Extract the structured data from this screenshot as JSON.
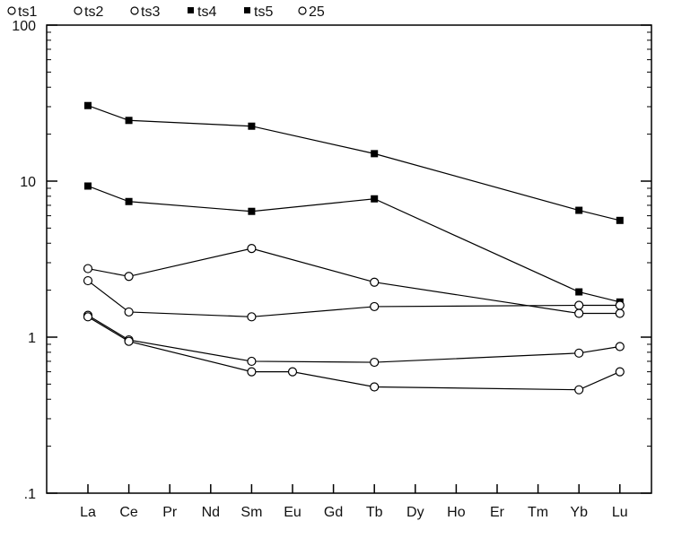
{
  "chart_data": {
    "type": "line",
    "title": "",
    "xlabel": "",
    "ylabel": "",
    "yscale": "log",
    "ylim": [
      0.1,
      100
    ],
    "grid": false,
    "legend_position": "top-left",
    "categories": [
      "La",
      "Ce",
      "Pr",
      "Nd",
      "Sm",
      "Eu",
      "Gd",
      "Tb",
      "Dy",
      "Ho",
      "Er",
      "Tm",
      "Yb",
      "Lu"
    ],
    "y_ticks": [
      {
        "value": 0.1,
        "label": ".1"
      },
      {
        "value": 1,
        "label": "1"
      },
      {
        "value": 10,
        "label": "10"
      },
      {
        "value": 100,
        "label": "100"
      }
    ],
    "series": [
      {
        "name": "ts1",
        "marker": "open-circle",
        "points": [
          [
            "La",
            1.38
          ],
          [
            "Ce",
            0.96
          ],
          [
            "Sm",
            0.7
          ],
          [
            "Tb",
            0.69
          ],
          [
            "Yb",
            0.79
          ],
          [
            "Lu",
            0.87
          ]
        ]
      },
      {
        "name": "ts2",
        "marker": "open-circle",
        "points": [
          [
            "La",
            1.35
          ],
          [
            "Ce",
            0.94
          ],
          [
            "Sm",
            0.6
          ],
          [
            "Eu",
            0.6
          ],
          [
            "Tb",
            0.48
          ],
          [
            "Yb",
            0.46
          ],
          [
            "Lu",
            0.6
          ]
        ]
      },
      {
        "name": "ts3",
        "marker": "open-circle",
        "points": [
          [
            "La",
            2.75
          ],
          [
            "Ce",
            2.45
          ],
          [
            "Sm",
            3.7
          ],
          [
            "Tb",
            2.25
          ],
          [
            "Yb",
            1.42
          ],
          [
            "Lu",
            1.42
          ]
        ]
      },
      {
        "name": "ts4",
        "marker": "filled-square",
        "points": [
          [
            "La",
            30.5
          ],
          [
            "Ce",
            24.5
          ],
          [
            "Sm",
            22.5
          ],
          [
            "Tb",
            15.0
          ],
          [
            "Yb",
            6.5
          ],
          [
            "Lu",
            5.6
          ]
        ]
      },
      {
        "name": "ts5",
        "marker": "filled-square",
        "points": [
          [
            "La",
            9.3
          ],
          [
            "Ce",
            7.4
          ],
          [
            "Sm",
            6.4
          ],
          [
            "Tb",
            7.7
          ],
          [
            "Yb",
            1.95
          ],
          [
            "Lu",
            1.68
          ]
        ]
      },
      {
        "name": "25",
        "marker": "open-circle",
        "points": [
          [
            "La",
            2.3
          ],
          [
            "Ce",
            1.45
          ],
          [
            "Sm",
            1.35
          ],
          [
            "Tb",
            1.57
          ],
          [
            "Yb",
            1.6
          ],
          [
            "Lu",
            1.6
          ]
        ]
      }
    ]
  }
}
